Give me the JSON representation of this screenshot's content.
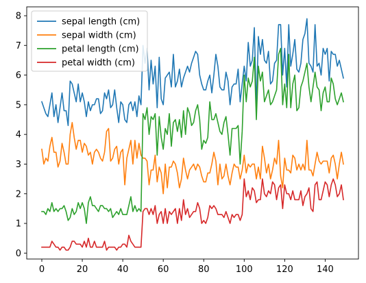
{
  "chart_data": {
    "type": "line",
    "title": "",
    "xlabel": "",
    "ylabel": "",
    "xlim": [
      -7.45,
      156.45
    ],
    "ylim": [
      -0.2,
      8.3
    ],
    "xticks": [
      0,
      20,
      40,
      60,
      80,
      100,
      120,
      140
    ],
    "yticks": [
      0,
      1,
      2,
      3,
      4,
      5,
      6,
      7,
      8
    ],
    "grid": false,
    "legend_position": "upper-left",
    "x": [
      0,
      1,
      2,
      3,
      4,
      5,
      6,
      7,
      8,
      9,
      10,
      11,
      12,
      13,
      14,
      15,
      16,
      17,
      18,
      19,
      20,
      21,
      22,
      23,
      24,
      25,
      26,
      27,
      28,
      29,
      30,
      31,
      32,
      33,
      34,
      35,
      36,
      37,
      38,
      39,
      40,
      41,
      42,
      43,
      44,
      45,
      46,
      47,
      48,
      49,
      50,
      51,
      52,
      53,
      54,
      55,
      56,
      57,
      58,
      59,
      60,
      61,
      62,
      63,
      64,
      65,
      66,
      67,
      68,
      69,
      70,
      71,
      72,
      73,
      74,
      75,
      76,
      77,
      78,
      79,
      80,
      81,
      82,
      83,
      84,
      85,
      86,
      87,
      88,
      89,
      90,
      91,
      92,
      93,
      94,
      95,
      96,
      97,
      98,
      99,
      100,
      101,
      102,
      103,
      104,
      105,
      106,
      107,
      108,
      109,
      110,
      111,
      112,
      113,
      114,
      115,
      116,
      117,
      118,
      119,
      120,
      121,
      122,
      123,
      124,
      125,
      126,
      127,
      128,
      129,
      130,
      131,
      132,
      133,
      134,
      135,
      136,
      137,
      138,
      139,
      140,
      141,
      142,
      143,
      144,
      145,
      146,
      147,
      148,
      149
    ],
    "series": [
      {
        "name": "sepal length (cm)",
        "color": "#1f77b4",
        "values": [
          5.1,
          4.9,
          4.7,
          4.6,
          5.0,
          5.4,
          4.6,
          5.0,
          4.4,
          4.9,
          5.4,
          4.8,
          4.8,
          4.3,
          5.8,
          5.7,
          5.4,
          5.1,
          5.7,
          5.1,
          5.4,
          5.1,
          4.6,
          5.1,
          4.8,
          5.0,
          5.0,
          5.2,
          5.2,
          4.7,
          4.8,
          5.4,
          5.2,
          5.5,
          4.9,
          5.0,
          5.5,
          4.9,
          4.4,
          5.1,
          5.0,
          4.5,
          4.4,
          5.0,
          5.1,
          4.8,
          5.1,
          4.6,
          5.3,
          5.0,
          7.0,
          6.4,
          6.9,
          5.5,
          6.5,
          5.7,
          6.3,
          4.9,
          6.6,
          5.2,
          5.0,
          5.9,
          6.0,
          6.1,
          5.6,
          6.7,
          5.6,
          5.8,
          6.2,
          5.6,
          5.9,
          6.1,
          6.3,
          6.1,
          6.4,
          6.6,
          6.8,
          6.7,
          6.0,
          5.7,
          5.5,
          5.5,
          5.8,
          6.0,
          5.4,
          6.0,
          6.7,
          6.3,
          5.6,
          5.5,
          5.5,
          6.1,
          5.8,
          5.0,
          5.6,
          5.7,
          5.7,
          6.2,
          5.1,
          5.7,
          6.3,
          5.8,
          7.1,
          6.3,
          6.5,
          7.6,
          4.9,
          7.3,
          6.7,
          7.2,
          6.5,
          6.4,
          6.8,
          5.7,
          5.8,
          6.4,
          6.5,
          7.7,
          7.7,
          6.0,
          6.9,
          5.6,
          7.7,
          6.3,
          6.7,
          7.2,
          6.2,
          6.1,
          6.4,
          7.2,
          7.4,
          7.9,
          6.4,
          6.3,
          6.1,
          7.7,
          6.3,
          6.4,
          6.0,
          6.9,
          6.7,
          6.9,
          5.8,
          6.8,
          6.7,
          6.7,
          6.3,
          6.5,
          6.2,
          5.9
        ]
      },
      {
        "name": "sepal width (cm)",
        "color": "#ff7f0e",
        "values": [
          3.5,
          3.0,
          3.2,
          3.1,
          3.6,
          3.9,
          3.4,
          3.4,
          2.9,
          3.1,
          3.7,
          3.4,
          3.0,
          3.0,
          4.0,
          4.4,
          3.9,
          3.5,
          3.8,
          3.8,
          3.4,
          3.7,
          3.6,
          3.3,
          3.4,
          3.0,
          3.4,
          3.5,
          3.4,
          3.2,
          3.1,
          3.4,
          4.1,
          4.2,
          3.1,
          3.2,
          3.5,
          3.6,
          3.0,
          3.4,
          3.5,
          2.3,
          3.2,
          3.5,
          3.8,
          3.0,
          3.8,
          3.2,
          3.7,
          3.3,
          3.2,
          3.2,
          3.1,
          2.3,
          2.8,
          2.8,
          3.3,
          2.4,
          2.9,
          2.7,
          2.0,
          3.0,
          2.2,
          2.9,
          2.9,
          3.1,
          3.0,
          2.7,
          2.2,
          2.5,
          3.2,
          2.8,
          2.5,
          2.8,
          2.9,
          3.0,
          2.8,
          3.0,
          2.9,
          2.6,
          2.4,
          2.4,
          2.7,
          2.7,
          3.0,
          3.4,
          3.1,
          2.3,
          3.0,
          2.5,
          2.6,
          3.0,
          2.6,
          2.3,
          2.7,
          3.0,
          2.9,
          2.9,
          2.5,
          2.8,
          3.3,
          2.7,
          3.0,
          2.9,
          3.0,
          3.0,
          2.5,
          2.9,
          2.5,
          3.6,
          3.2,
          2.7,
          3.0,
          2.5,
          2.8,
          3.2,
          3.0,
          3.8,
          2.6,
          2.2,
          3.2,
          2.8,
          2.8,
          2.7,
          3.3,
          3.2,
          2.8,
          3.0,
          2.8,
          3.0,
          2.8,
          3.8,
          2.8,
          2.8,
          2.6,
          3.0,
          3.4,
          3.1,
          3.0,
          3.1,
          3.1,
          3.1,
          2.7,
          3.2,
          3.3,
          3.0,
          2.5,
          3.0,
          3.4,
          3.0
        ]
      },
      {
        "name": "petal length (cm)",
        "color": "#2ca02c",
        "values": [
          1.4,
          1.4,
          1.3,
          1.5,
          1.4,
          1.7,
          1.4,
          1.5,
          1.4,
          1.5,
          1.5,
          1.6,
          1.4,
          1.1,
          1.2,
          1.5,
          1.3,
          1.4,
          1.7,
          1.5,
          1.7,
          1.5,
          1.0,
          1.7,
          1.9,
          1.6,
          1.6,
          1.5,
          1.4,
          1.6,
          1.6,
          1.5,
          1.5,
          1.4,
          1.5,
          1.2,
          1.3,
          1.4,
          1.3,
          1.5,
          1.3,
          1.3,
          1.3,
          1.6,
          1.9,
          1.4,
          1.6,
          1.4,
          1.5,
          1.4,
          4.7,
          4.5,
          4.9,
          4.0,
          4.6,
          4.5,
          4.7,
          3.3,
          4.6,
          3.9,
          3.5,
          4.2,
          4.0,
          4.7,
          3.6,
          4.4,
          4.5,
          4.1,
          4.5,
          3.9,
          4.8,
          4.0,
          4.9,
          4.7,
          4.3,
          4.4,
          4.8,
          5.0,
          4.5,
          3.5,
          3.8,
          3.7,
          3.9,
          5.1,
          4.5,
          4.5,
          4.7,
          4.4,
          4.1,
          4.0,
          4.4,
          4.6,
          4.0,
          3.3,
          4.2,
          4.2,
          4.2,
          4.3,
          3.0,
          4.1,
          6.0,
          5.1,
          5.9,
          5.6,
          5.8,
          6.6,
          4.5,
          6.3,
          5.8,
          6.1,
          5.1,
          5.3,
          5.5,
          5.0,
          5.1,
          5.3,
          5.5,
          6.7,
          6.9,
          5.0,
          5.7,
          4.9,
          6.7,
          4.9,
          5.7,
          6.0,
          4.8,
          4.9,
          5.6,
          5.8,
          6.1,
          6.4,
          5.6,
          5.1,
          5.6,
          6.1,
          5.6,
          5.5,
          4.8,
          5.4,
          5.6,
          5.1,
          5.1,
          5.9,
          5.7,
          5.2,
          5.0,
          5.2,
          5.4,
          5.1
        ]
      },
      {
        "name": "petal width (cm)",
        "color": "#d62728",
        "values": [
          0.2,
          0.2,
          0.2,
          0.2,
          0.2,
          0.4,
          0.3,
          0.2,
          0.2,
          0.1,
          0.2,
          0.2,
          0.1,
          0.1,
          0.2,
          0.4,
          0.4,
          0.3,
          0.3,
          0.3,
          0.2,
          0.4,
          0.2,
          0.5,
          0.2,
          0.2,
          0.4,
          0.2,
          0.2,
          0.2,
          0.2,
          0.4,
          0.1,
          0.2,
          0.2,
          0.2,
          0.2,
          0.1,
          0.2,
          0.2,
          0.3,
          0.3,
          0.2,
          0.6,
          0.4,
          0.3,
          0.2,
          0.2,
          0.2,
          0.2,
          1.4,
          1.5,
          1.5,
          1.3,
          1.5,
          1.3,
          1.6,
          1.0,
          1.3,
          1.4,
          1.0,
          1.5,
          1.0,
          1.4,
          1.3,
          1.4,
          1.5,
          1.0,
          1.5,
          1.1,
          1.8,
          1.3,
          1.5,
          1.2,
          1.3,
          1.4,
          1.4,
          1.7,
          1.5,
          1.0,
          1.1,
          1.0,
          1.2,
          1.6,
          1.5,
          1.6,
          1.5,
          1.3,
          1.3,
          1.3,
          1.2,
          1.4,
          1.2,
          1.0,
          1.3,
          1.2,
          1.3,
          1.3,
          1.1,
          1.3,
          2.5,
          1.9,
          2.1,
          1.8,
          2.2,
          2.1,
          1.7,
          1.8,
          1.8,
          2.5,
          2.0,
          1.9,
          2.1,
          2.0,
          2.4,
          2.3,
          1.8,
          2.2,
          2.3,
          1.5,
          2.3,
          2.0,
          2.0,
          1.8,
          2.1,
          1.8,
          1.8,
          1.8,
          2.1,
          1.6,
          1.9,
          2.0,
          2.2,
          1.5,
          1.4,
          2.3,
          2.4,
          1.8,
          1.8,
          2.1,
          2.4,
          2.3,
          1.9,
          2.3,
          2.5,
          2.3,
          1.9,
          2.0,
          2.3,
          1.8
        ]
      }
    ]
  }
}
